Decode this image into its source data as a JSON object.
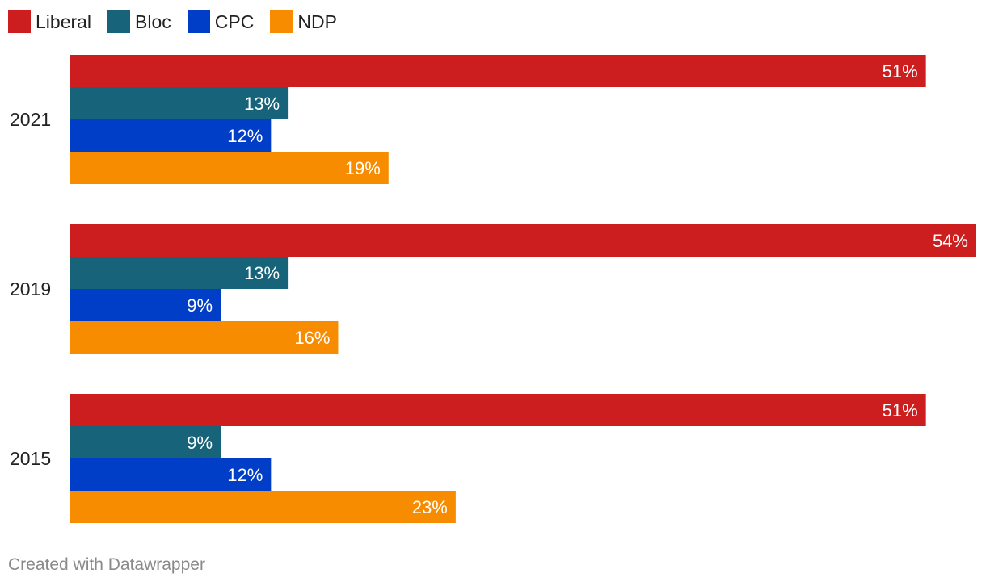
{
  "legend": [
    {
      "label": "Liberal",
      "color": "#cc1e1e"
    },
    {
      "label": "Bloc",
      "color": "#17637a"
    },
    {
      "label": "CPC",
      "color": "#003ec8"
    },
    {
      "label": "NDP",
      "color": "#f78c00"
    }
  ],
  "footer": {
    "credit": "Created with Datawrapper"
  },
  "chart_data": {
    "type": "bar",
    "orientation": "horizontal",
    "title": "",
    "xlabel": "",
    "ylabel": "",
    "categories": [
      "2021",
      "2019",
      "2015"
    ],
    "series": [
      {
        "name": "Liberal",
        "color": "#cc1e1e",
        "values": [
          51,
          54,
          51
        ],
        "labels": [
          "51%",
          "54%",
          "51%"
        ]
      },
      {
        "name": "Bloc",
        "color": "#17637a",
        "values": [
          13,
          13,
          9
        ],
        "labels": [
          "13%",
          "13%",
          "9%"
        ]
      },
      {
        "name": "CPC",
        "color": "#003ec8",
        "values": [
          12,
          9,
          12
        ],
        "labels": [
          "12%",
          "9%",
          "12%"
        ]
      },
      {
        "name": "NDP",
        "color": "#f78c00",
        "values": [
          19,
          16,
          23
        ],
        "labels": [
          "19%",
          "16%",
          "23%"
        ]
      }
    ],
    "xlim": [
      0,
      54
    ],
    "grid": false,
    "legend_position": "top-left"
  }
}
